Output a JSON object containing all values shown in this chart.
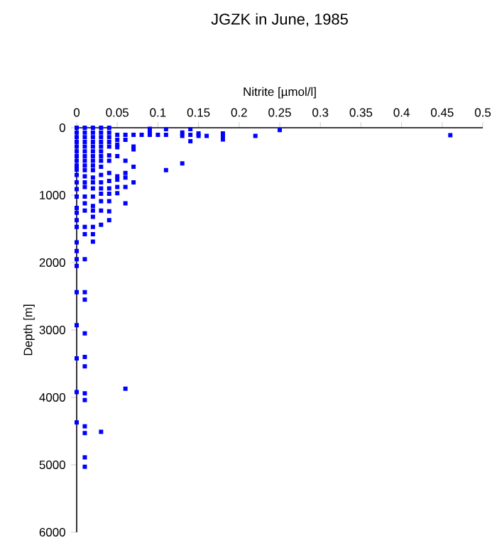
{
  "chart_data": {
    "type": "scatter",
    "title": "JGZK in June, 1985",
    "xlabel": "Nitrite [µmol/l]",
    "ylabel": "Depth [m]",
    "xlim": [
      0,
      0.5
    ],
    "ylim": [
      6000,
      0
    ],
    "xticks": [
      0,
      0.05,
      0.1,
      0.15,
      0.2,
      0.25,
      0.3,
      0.35,
      0.4,
      0.45,
      0.5
    ],
    "yticks": [
      0,
      1000,
      2000,
      3000,
      4000,
      5000,
      6000
    ],
    "marker": "square",
    "series": [
      {
        "color": "#0000ff",
        "x": [
          0,
          0,
          0,
          0,
          0,
          0,
          0,
          0,
          0,
          0,
          0,
          0,
          0,
          0,
          0,
          0,
          0,
          0,
          0,
          0,
          0,
          0,
          0,
          0,
          0,
          0,
          0,
          0.01,
          0.01,
          0.01,
          0.01,
          0.01,
          0.01,
          0.01,
          0.01,
          0.01,
          0.01,
          0.01,
          0.01,
          0.01,
          0.01,
          0.01,
          0.01,
          0.01,
          0.01,
          0.01,
          0.01,
          0.01,
          0.01,
          0.01,
          0.01,
          0.01,
          0.01,
          0.01,
          0.01,
          0.01,
          0.01,
          0.02,
          0.02,
          0.02,
          0.02,
          0.02,
          0.02,
          0.02,
          0.02,
          0.02,
          0.02,
          0.02,
          0.02,
          0.02,
          0.02,
          0.02,
          0.02,
          0.02,
          0.02,
          0.02,
          0.02,
          0.03,
          0.03,
          0.03,
          0.03,
          0.03,
          0.03,
          0.03,
          0.03,
          0.03,
          0.03,
          0.03,
          0.03,
          0.03,
          0.03,
          0.03,
          0.03,
          0.03,
          0.04,
          0.04,
          0.04,
          0.04,
          0.04,
          0.04,
          0.04,
          0.04,
          0.04,
          0.04,
          0.04,
          0.04,
          0.04,
          0.04,
          0.05,
          0.05,
          0.05,
          0.05,
          0.05,
          0.05,
          0.05,
          0.05,
          0.05,
          0.06,
          0.06,
          0.06,
          0.06,
          0.06,
          0.06,
          0.06,
          0.06,
          0.07,
          0.07,
          0.07,
          0.07,
          0.07,
          0.08,
          0.09,
          0.09,
          0.09,
          0.1,
          0.11,
          0.11,
          0.11,
          0.13,
          0.13,
          0.13,
          0.14,
          0.14,
          0.14,
          0.15,
          0.15,
          0.16,
          0.18,
          0.18,
          0.18,
          0.22,
          0.25,
          0.46
        ],
        "values": [
          0,
          70,
          140,
          210,
          280,
          350,
          420,
          490,
          560,
          620,
          700,
          810,
          910,
          1020,
          1190,
          1260,
          1370,
          1470,
          1700,
          1830,
          1950,
          2050,
          2440,
          2930,
          3420,
          3920,
          4370,
          0,
          70,
          140,
          210,
          280,
          350,
          420,
          490,
          560,
          630,
          720,
          810,
          880,
          1020,
          1120,
          1230,
          1470,
          1580,
          1950,
          2440,
          2550,
          3050,
          3400,
          3540,
          3940,
          4040,
          4430,
          4530,
          4890,
          5030,
          0,
          70,
          140,
          210,
          280,
          350,
          420,
          490,
          560,
          630,
          740,
          810,
          900,
          1020,
          1160,
          1230,
          1320,
          1470,
          1580,
          1690,
          0,
          70,
          140,
          210,
          280,
          350,
          420,
          490,
          580,
          700,
          810,
          900,
          980,
          1090,
          1230,
          1440,
          4510,
          0,
          70,
          140,
          210,
          280,
          410,
          490,
          670,
          790,
          900,
          980,
          1090,
          1240,
          1370,
          105,
          180,
          250,
          290,
          420,
          720,
          770,
          880,
          970,
          105,
          180,
          490,
          670,
          740,
          880,
          1120,
          3870,
          105,
          280,
          320,
          580,
          810,
          105,
          15,
          70,
          105,
          105,
          20,
          105,
          630,
          70,
          120,
          530,
          20,
          105,
          200,
          85,
          120,
          120,
          85,
          120,
          175,
          120,
          35,
          110
        ]
      }
    ]
  }
}
